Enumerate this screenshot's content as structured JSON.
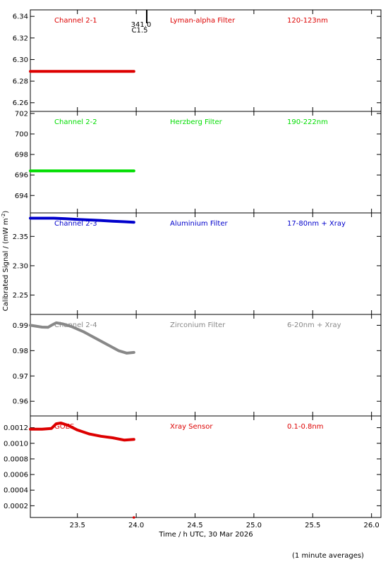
{
  "page": {
    "ylabel": "Calibrated Signal / (mW m",
    "ylabel_sup": "-2",
    "ylabel_close": ")",
    "xlabel": "Time / h UTC, 30 Mar 2026",
    "footnote": "(1 minute averages)",
    "flare_marker_top": "341.0",
    "flare_marker_bottom": "C1.5"
  },
  "chart_data": [
    {
      "type": "scatter",
      "name": "Channel 2-1",
      "filter": "Lyman-alpha Filter",
      "range": "120-123nm",
      "color": "#dd0000",
      "ylim": [
        6.252,
        6.346
      ],
      "yticks": [
        6.26,
        6.28,
        6.3,
        6.32,
        6.34
      ],
      "ytick_labels": [
        "6.26",
        "6.28",
        "6.30",
        "6.32",
        "6.34"
      ],
      "x": [
        23.1,
        23.2,
        23.3,
        23.4,
        23.5,
        23.6,
        23.7,
        23.8,
        23.9,
        23.98
      ],
      "y": [
        6.289,
        6.289,
        6.289,
        6.289,
        6.289,
        6.289,
        6.289,
        6.289,
        6.289,
        6.289
      ]
    },
    {
      "type": "scatter",
      "name": "Channel 2-2",
      "filter": "Herzberg Filter",
      "range": "190-222nm",
      "color": "#00dd00",
      "ylim": [
        692.3,
        702.2
      ],
      "yticks": [
        694,
        696,
        698,
        700,
        702
      ],
      "ytick_labels": [
        "694",
        "696",
        "698",
        "700",
        "702"
      ],
      "x": [
        23.1,
        23.2,
        23.3,
        23.4,
        23.5,
        23.6,
        23.7,
        23.8,
        23.9,
        23.98
      ],
      "y": [
        696.4,
        696.4,
        696.4,
        696.4,
        696.4,
        696.4,
        696.4,
        696.4,
        696.4,
        696.4
      ]
    },
    {
      "type": "scatter",
      "name": "Channel 2-3",
      "filter": "Aluminium Filter",
      "range": "17-80nm + Xray",
      "color": "#0000cc",
      "ylim": [
        2.217,
        2.39
      ],
      "yticks": [
        2.25,
        2.3,
        2.35
      ],
      "ytick_labels": [
        "2.25",
        "2.30",
        "2.35"
      ],
      "x": [
        23.1,
        23.2,
        23.3,
        23.4,
        23.5,
        23.6,
        23.7,
        23.8,
        23.9,
        23.98
      ],
      "y": [
        2.381,
        2.381,
        2.381,
        2.38,
        2.379,
        2.378,
        2.377,
        2.376,
        2.375,
        2.374
      ]
    },
    {
      "type": "scatter",
      "name": "Channel 2-4",
      "filter": "Zirconium Filter",
      "range": "6-20nm + Xray",
      "color": "#888888",
      "ylim": [
        0.9542,
        0.9943
      ],
      "yticks": [
        0.96,
        0.97,
        0.98,
        0.99
      ],
      "ytick_labels": [
        "0.96",
        "0.97",
        "0.98",
        "0.99"
      ],
      "x": [
        23.1,
        23.2,
        23.25,
        23.28,
        23.32,
        23.38,
        23.45,
        23.55,
        23.65,
        23.75,
        23.85,
        23.92,
        23.98
      ],
      "y": [
        0.99,
        0.9893,
        0.9892,
        0.99,
        0.991,
        0.9905,
        0.9895,
        0.9875,
        0.985,
        0.9825,
        0.98,
        0.979,
        0.9793
      ]
    },
    {
      "type": "scatter",
      "name": "GOES",
      "filter": "Xray Sensor",
      "range": "0.1-0.8nm",
      "color": "#dd0000",
      "ylim": [
        5e-05,
        0.00135
      ],
      "yticks": [
        0.0002,
        0.0004,
        0.0006,
        0.0008,
        0.001,
        0.0012
      ],
      "ytick_labels": [
        "0.0002",
        "0.0004",
        "0.0006",
        "0.0008",
        "0.0010",
        "0.0012"
      ],
      "x": [
        23.1,
        23.2,
        23.28,
        23.32,
        23.36,
        23.42,
        23.5,
        23.6,
        23.7,
        23.8,
        23.9,
        23.98
      ],
      "y": [
        0.00118,
        0.00118,
        0.00119,
        0.00125,
        0.00126,
        0.00123,
        0.00117,
        0.00112,
        0.00109,
        0.00107,
        0.00104,
        0.00105
      ]
    }
  ],
  "x_axis": {
    "xlim": [
      23.1,
      26.08
    ],
    "xticks": [
      23.5,
      24.0,
      24.5,
      25.0,
      25.5,
      26.0
    ],
    "xtick_labels": [
      "23.5",
      "24.0",
      "24.5",
      "25.0",
      "25.5",
      "26.0"
    ]
  }
}
